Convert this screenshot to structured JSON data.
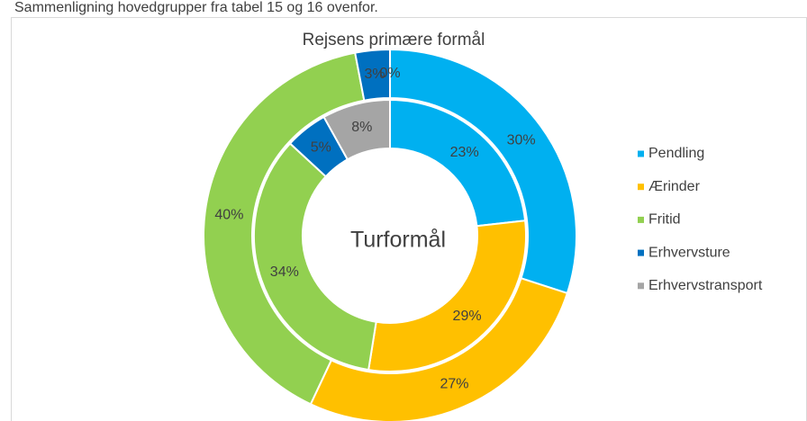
{
  "caption": "Sammenligning hovedgrupper fra tabel 15 og 16 ovenfor.",
  "chart_data": {
    "type": "donut",
    "categories": [
      "Pendling",
      "Ærinder",
      "Fritid",
      "Erhvervsture",
      "Erhvervstransport"
    ],
    "colors": [
      "#00B0F0",
      "#FFC000",
      "#92D050",
      "#0070C0",
      "#A5A5A5"
    ],
    "legend": "right",
    "series": [
      {
        "name": "Rejsens primære formål",
        "values": [
          30,
          27,
          40,
          3,
          0
        ],
        "value_labels": [
          "30%",
          "27%",
          "40%",
          "3%",
          "0%"
        ]
      },
      {
        "name": "Turformål",
        "values": [
          23,
          29,
          34,
          5,
          8
        ],
        "value_labels": [
          "23%",
          "29%",
          "34%",
          "5%",
          "8%"
        ]
      }
    ]
  }
}
